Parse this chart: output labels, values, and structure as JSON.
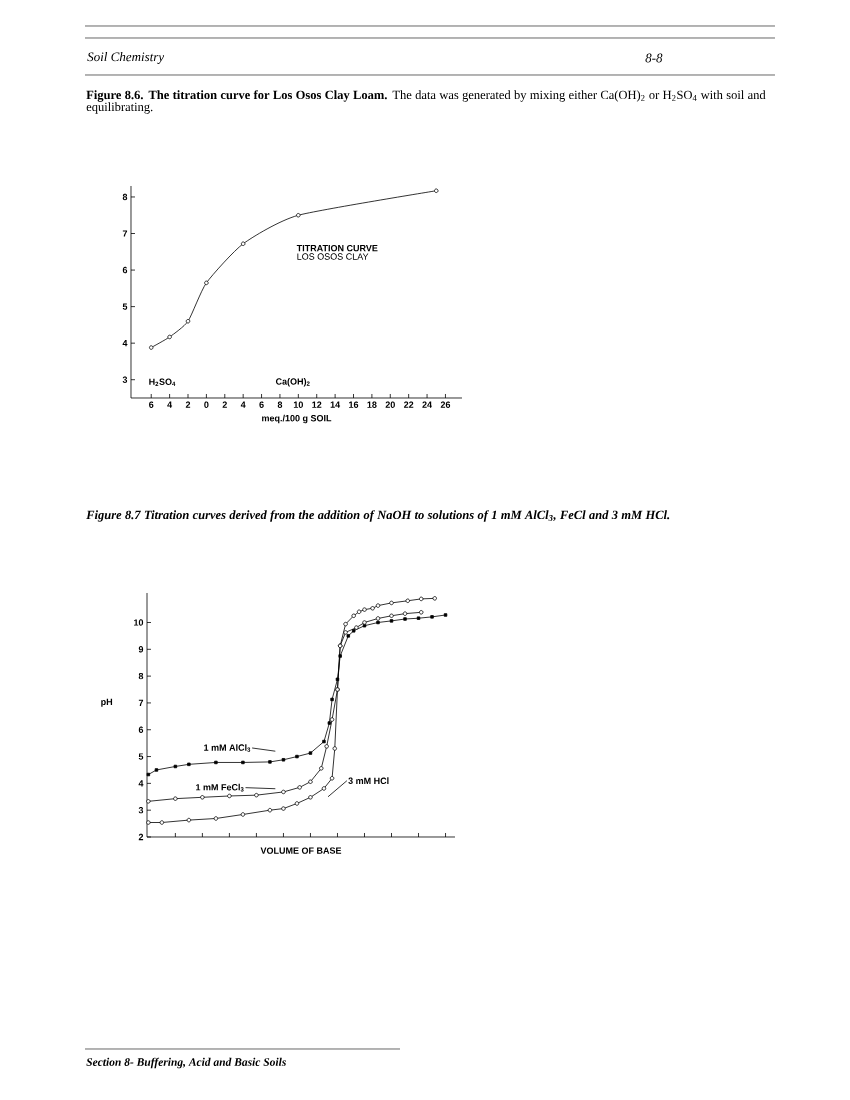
{
  "chart_data": [
    {
      "type": "line",
      "title": "**Figure 8.6.  The titration curve for Los Osos Clay Loam.**  The data was generated by mixing either Ca(OH)$_{2}$ or H$_{2}$SO$_{4}$ with soil and equilibrating.",
      "xlabel": "meq./100 g SOIL",
      "annotations": [
        "Soil Chemistry",
        "8-8",
        "TITRATION CURVE",
        "LOS OSOS CLAY",
        "H$_{2}$SO$_{4}$",
        "Ca(OH)$_{2}$"
      ],
      "x": [
        -6,
        -4,
        -2,
        0,
        4,
        10,
        25
      ],
      "values": [
        3.88,
        4.17,
        4.6,
        5.65,
        6.72,
        7.5,
        8.17
      ],
      "color": "#000000",
      "marker": "circle",
      "xlim": [
        -8.2,
        27.8
      ],
      "ylim": [
        2.5,
        8.3
      ],
      "xticks": [
        {
          "value": -6,
          "label": "6"
        },
        {
          "value": -4,
          "label": "4"
        },
        {
          "value": -2,
          "label": "2"
        },
        {
          "value": 0,
          "label": "0"
        },
        2,
        4,
        6,
        8,
        10,
        12,
        14,
        16,
        18,
        20,
        22,
        24,
        26
      ],
      "yticks": [
        3,
        4,
        5,
        6,
        7,
        8
      ]
    },
    {
      "type": "line",
      "title": "Figure 8.7 Titration curves derived from the addition of NaOH to solutions of  1 mM AlCl$_{3}$, FeCl  and 3 mM HCl.",
      "xlabel": "VOLUME OF BASE",
      "ylabel": "pH",
      "annotations": [
        "Section 8- Buffering, Acid and Basic Soils"
      ],
      "series": [
        {
          "name": "1 mM AlCl$_{3}$",
          "color": "#000000",
          "marker": "square",
          "values": [
            4.33,
            null,
            null,
            4.5,
            null,
            null,
            null,
            null,
            null,
            null,
            4.63,
            null,
            null,
            null,
            null,
            4.71,
            null,
            null,
            null,
            null,
            null,
            null,
            null,
            null,
            null,
            4.78,
            null,
            null,
            null,
            null,
            null,
            null,
            null,
            null,
            null,
            4.78,
            null,
            null,
            null,
            null,
            null,
            null,
            null,
            null,
            null,
            4.8,
            null,
            null,
            null,
            null,
            4.88,
            null,
            null,
            null,
            null,
            5.0,
            null,
            null,
            null,
            null,
            5.13,
            null,
            null,
            null,
            null,
            5.56,
            null,
            6.25,
            7.13,
            null,
            7.88,
            8.75,
            null,
            null,
            9.5,
            null,
            9.69,
            null,
            null,
            null,
            9.88,
            null,
            null,
            null,
            null,
            10.0,
            null,
            null,
            null,
            null,
            10.06,
            null,
            null,
            null,
            null,
            10.13,
            null,
            null,
            null,
            null,
            10.16,
            null,
            null,
            null,
            null,
            10.21,
            null,
            null,
            null,
            null,
            10.28,
            null,
            null,
            null
          ]
        },
        {
          "name": "1 mM FeCl$_{3}$",
          "color": "#000000",
          "marker": "circle",
          "values": [
            3.33,
            null,
            null,
            null,
            null,
            null,
            null,
            null,
            null,
            null,
            3.43,
            null,
            null,
            null,
            null,
            null,
            null,
            null,
            null,
            null,
            3.48,
            null,
            null,
            null,
            null,
            null,
            null,
            null,
            null,
            null,
            3.53,
            null,
            null,
            null,
            null,
            null,
            null,
            null,
            null,
            null,
            3.56,
            null,
            null,
            null,
            null,
            null,
            null,
            null,
            null,
            null,
            3.68,
            null,
            null,
            null,
            null,
            null,
            3.85,
            null,
            null,
            null,
            4.06,
            null,
            null,
            null,
            4.56,
            null,
            5.38,
            null,
            6.38,
            null,
            7.5,
            9.13,
            null,
            9.63,
            null,
            null,
            null,
            9.81,
            null,
            null,
            10.0,
            null,
            null,
            null,
            null,
            10.15,
            null,
            null,
            null,
            null,
            10.25,
            null,
            null,
            null,
            null,
            10.33,
            null,
            null,
            null,
            null,
            null,
            10.38,
            null,
            null,
            null,
            null,
            null,
            null,
            null,
            null,
            null,
            null,
            null,
            null
          ]
        },
        {
          "name": "3 mM HCl",
          "color": "#000000",
          "marker": "circle",
          "values": [
            2.54,
            null,
            null,
            null,
            null,
            2.54,
            null,
            null,
            null,
            null,
            null,
            null,
            null,
            null,
            null,
            2.63,
            null,
            null,
            null,
            null,
            null,
            null,
            null,
            null,
            null,
            2.69,
            null,
            null,
            null,
            null,
            null,
            null,
            null,
            null,
            null,
            2.84,
            null,
            null,
            null,
            null,
            null,
            null,
            null,
            null,
            null,
            3.0,
            null,
            null,
            null,
            null,
            3.06,
            null,
            null,
            null,
            null,
            3.25,
            null,
            null,
            null,
            null,
            3.48,
            null,
            null,
            null,
            null,
            3.81,
            null,
            null,
            4.19,
            5.3,
            7.5,
            9.13,
            null,
            9.94,
            null,
            null,
            10.25,
            null,
            10.4,
            null,
            10.48,
            null,
            null,
            10.53,
            null,
            10.63,
            null,
            null,
            null,
            null,
            10.73,
            null,
            null,
            null,
            null,
            null,
            10.81,
            null,
            null,
            null,
            null,
            10.88,
            null,
            null,
            null,
            null,
            10.9,
            null,
            null,
            null,
            null,
            null,
            null,
            null
          ]
        }
      ],
      "categories": [
        null,
        null,
        null,
        null,
        null,
        null,
        null,
        null,
        null,
        null,
        null,
        null,
        null,
        null,
        null,
        null,
        null,
        null,
        null,
        null,
        null,
        null,
        null,
        null,
        null,
        null,
        null,
        null,
        null,
        null,
        null,
        null,
        null,
        null,
        null,
        null,
        null,
        null,
        null,
        null,
        null,
        null,
        null,
        null,
        null,
        null,
        null,
        null,
        null,
        null,
        null,
        null,
        null,
        null,
        null,
        null,
        null,
        null,
        null,
        null,
        null,
        null,
        null,
        null,
        null,
        null,
        null,
        null,
        null,
        null,
        null,
        null,
        null,
        null,
        null,
        null,
        null,
        null,
        null,
        null,
        null,
        null,
        null,
        null,
        null,
        null,
        null,
        null,
        null,
        null,
        null,
        null,
        null,
        null,
        null,
        null,
        null,
        null,
        null,
        null,
        null,
        null,
        null,
        null,
        null,
        null,
        null,
        null,
        null,
        null,
        null,
        null,
        null,
        null
      ],
      "ylim": [
        2,
        11.1
      ],
      "legend": "left",
      "yticks": [
        2,
        3,
        4,
        5,
        6,
        7,
        8,
        9,
        10
      ]
    }
  ]
}
